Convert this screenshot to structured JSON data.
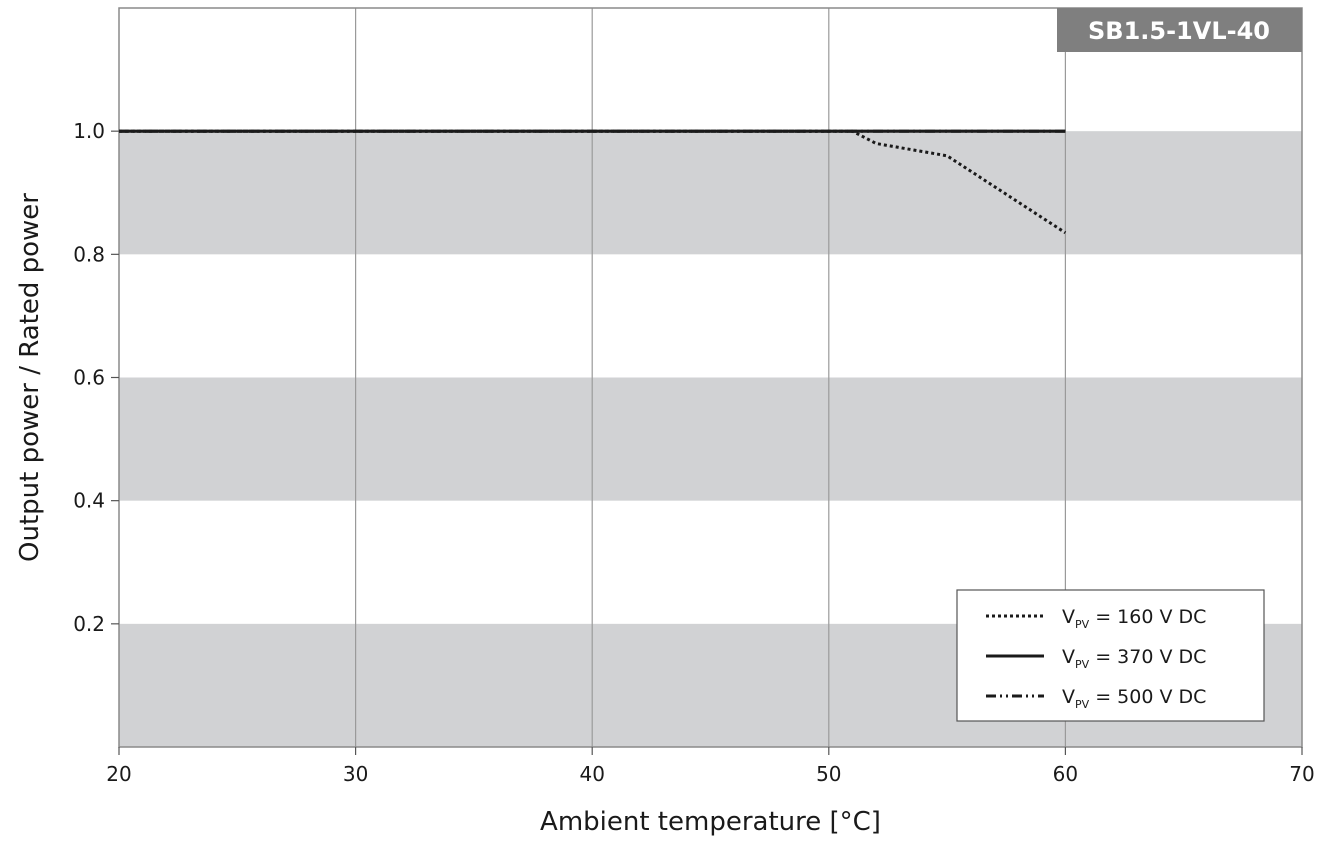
{
  "chart_data": {
    "type": "line",
    "title": "SB1.5-1VL-40",
    "xlabel": "Ambient temperature [°C]",
    "ylabel": "Output power / Rated power",
    "xlim": [
      20,
      70
    ],
    "ylim": [
      0,
      1.2
    ],
    "x_ticks": [
      "20",
      "30",
      "40",
      "50",
      "60",
      "70"
    ],
    "y_ticks": [
      "0.2",
      "0.4",
      "0.6",
      "0.8",
      "1.0"
    ],
    "grid": "vertical lines, alternating grey horizontal bands",
    "legend_position": "bottom-right",
    "series": [
      {
        "name_main": "V",
        "name_sub": "PV",
        "name_rest": " = 160 V DC",
        "style": "dotted",
        "x": [
          20,
          51,
          52,
          55,
          60
        ],
        "y": [
          1.0,
          1.0,
          0.98,
          0.96,
          0.835
        ]
      },
      {
        "name_main": "V",
        "name_sub": "PV",
        "name_rest": " = 370 V DC",
        "style": "solid",
        "x": [
          20,
          60
        ],
        "y": [
          1.0,
          1.0
        ]
      },
      {
        "name_main": "V",
        "name_sub": "PV",
        "name_rest": " = 500 V DC",
        "style": "dash-dot-dot",
        "x": [
          20,
          60
        ],
        "y": [
          1.0,
          1.0
        ]
      }
    ]
  }
}
